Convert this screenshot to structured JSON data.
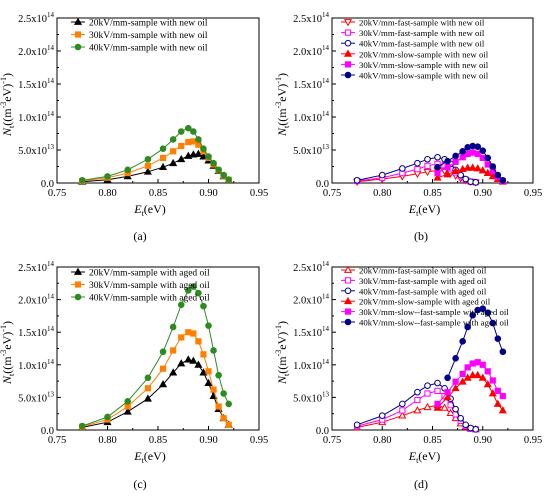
{
  "chart_data": [
    {
      "type": "line",
      "panel_label": "(a)",
      "xlabel": "E",
      "xlabel_sub": "t",
      "xlabel_unit": "(eV)",
      "ylabel_main": "N",
      "ylabel_sub": "t",
      "ylabel_rest": "((m",
      "ylabel_sup1": "-3",
      "ylabel_mid": "eV)",
      "ylabel_sup2": "-1",
      "ylabel_end": ")",
      "xlim": [
        0.75,
        0.95
      ],
      "ylim": [
        0,
        250000000000000.0
      ],
      "x_ticks": [
        "0.75",
        "0.80",
        "0.85",
        "0.90",
        "0.95"
      ],
      "y_ticks": [
        "0.0",
        "5.0x10",
        "1.0x10",
        "1.5x10",
        "2.0x10",
        "2.5x10"
      ],
      "y_tick_exps": [
        "",
        "13",
        "14",
        "14",
        "14",
        "14"
      ],
      "series": [
        {
          "name": "20kV/mm-sample with new oil",
          "color": "#000000",
          "marker": "triangle",
          "fill": true,
          "x": [
            0.775,
            0.8,
            0.82,
            0.84,
            0.855,
            0.865,
            0.873,
            0.88,
            0.885,
            0.89,
            0.895,
            0.9,
            0.905,
            0.91,
            0.915,
            0.92
          ],
          "y": [
            2000000000000.0,
            5000000000000.0,
            10000000000000.0,
            17000000000000.0,
            24000000000000.0,
            30000000000000.0,
            36000000000000.0,
            41000000000000.0,
            43000000000000.0,
            44000000000000.0,
            40000000000000.0,
            34000000000000.0,
            26000000000000.0,
            18000000000000.0,
            10000000000000.0,
            4000000000000.0
          ]
        },
        {
          "name": "30kV/mm-sample with new oil",
          "color": "#FF7F00",
          "marker": "square",
          "fill": true,
          "x": [
            0.775,
            0.8,
            0.82,
            0.84,
            0.855,
            0.865,
            0.873,
            0.88,
            0.885,
            0.89,
            0.895,
            0.9,
            0.905,
            0.91,
            0.915,
            0.92
          ],
          "y": [
            3000000000000.0,
            8000000000000.0,
            15000000000000.0,
            26000000000000.0,
            38000000000000.0,
            48000000000000.0,
            56000000000000.0,
            62000000000000.0,
            63000000000000.0,
            58000000000000.0,
            48000000000000.0,
            38000000000000.0,
            28000000000000.0,
            19000000000000.0,
            11000000000000.0,
            5000000000000.0
          ]
        },
        {
          "name": "40kV/mm-sample with new oil",
          "color": "#2E8B22",
          "marker": "circle",
          "fill": true,
          "x": [
            0.775,
            0.8,
            0.82,
            0.84,
            0.855,
            0.865,
            0.873,
            0.88,
            0.885,
            0.89,
            0.895,
            0.9,
            0.905,
            0.91,
            0.915,
            0.92
          ],
          "y": [
            4000000000000.0,
            10000000000000.0,
            20000000000000.0,
            36000000000000.0,
            52000000000000.0,
            66000000000000.0,
            78000000000000.0,
            83000000000000.0,
            78000000000000.0,
            66000000000000.0,
            52000000000000.0,
            40000000000000.0,
            30000000000000.0,
            20000000000000.0,
            12000000000000.0,
            5000000000000.0
          ]
        }
      ]
    },
    {
      "type": "line",
      "panel_label": "(b)",
      "xlabel": "E",
      "xlabel_sub": "t",
      "xlabel_unit": "(eV)",
      "ylabel_main": "N",
      "ylabel_sub": "t",
      "ylabel_rest": "((m",
      "ylabel_sup1": "-3",
      "ylabel_mid": "eV)",
      "ylabel_sup2": "-1",
      "ylabel_end": ")",
      "xlim": [
        0.75,
        0.95
      ],
      "ylim": [
        0,
        250000000000000.0
      ],
      "x_ticks": [
        "0.75",
        "0.80",
        "0.85",
        "0.90",
        "0.95"
      ],
      "y_ticks": [
        "0.0",
        "5.0x10",
        "1.0x10",
        "1.5x10",
        "2.0x10",
        "2.5x10"
      ],
      "y_tick_exps": [
        "",
        "13",
        "14",
        "14",
        "14",
        "14"
      ],
      "series": [
        {
          "name": "20kV/mm-fast-sample with new oil",
          "color": "#FF0000",
          "marker": "triangle-down",
          "fill": false,
          "x": [
            0.775,
            0.8,
            0.82,
            0.835,
            0.845,
            0.855,
            0.862,
            0.868,
            0.873,
            0.878,
            0.883,
            0.888,
            0.893
          ],
          "y": [
            2000000000000.0,
            6000000000000.0,
            10000000000000.0,
            14000000000000.0,
            17000000000000.0,
            19000000000000.0,
            18000000000000.0,
            15000000000000.0,
            11000000000000.0,
            7000000000000.0,
            4000000000000.0,
            2000000000000.0,
            1000000000000.0
          ]
        },
        {
          "name": "30kV/mm-fast-sample with new oil",
          "color": "#FF00FF",
          "marker": "square",
          "fill": false,
          "x": [
            0.775,
            0.8,
            0.82,
            0.835,
            0.845,
            0.855,
            0.862,
            0.868,
            0.873,
            0.878,
            0.883,
            0.888,
            0.893
          ],
          "y": [
            3000000000000.0,
            8000000000000.0,
            15000000000000.0,
            21000000000000.0,
            26000000000000.0,
            29000000000000.0,
            27000000000000.0,
            22000000000000.0,
            16000000000000.0,
            10000000000000.0,
            5000000000000.0,
            2000000000000.0,
            1000000000000.0
          ]
        },
        {
          "name": "40kV/mm-fast-sample with new oil",
          "color": "#00008B",
          "marker": "circle",
          "fill": false,
          "x": [
            0.775,
            0.8,
            0.82,
            0.835,
            0.845,
            0.855,
            0.862,
            0.868,
            0.873,
            0.878,
            0.883,
            0.888,
            0.893
          ],
          "y": [
            4000000000000.0,
            12000000000000.0,
            22000000000000.0,
            30000000000000.0,
            36000000000000.0,
            39000000000000.0,
            36000000000000.0,
            29000000000000.0,
            20000000000000.0,
            12000000000000.0,
            6000000000000.0,
            2000000000000.0,
            1000000000000.0
          ]
        },
        {
          "name": "20kV/mm-slow-sample with new oil",
          "color": "#FF0000",
          "marker": "triangle",
          "fill": true,
          "x": [
            0.855,
            0.865,
            0.873,
            0.88,
            0.885,
            0.89,
            0.895,
            0.9,
            0.905,
            0.91,
            0.915,
            0.92
          ],
          "y": [
            8000000000000.0,
            13000000000000.0,
            18000000000000.0,
            21000000000000.0,
            23000000000000.0,
            23000000000000.0,
            22000000000000.0,
            19000000000000.0,
            15000000000000.0,
            10000000000000.0,
            6000000000000.0,
            2000000000000.0
          ]
        },
        {
          "name": "30kV/mm-slow-sample with new oil",
          "color": "#FF00FF",
          "marker": "square",
          "fill": true,
          "x": [
            0.855,
            0.865,
            0.873,
            0.88,
            0.885,
            0.89,
            0.895,
            0.9,
            0.905,
            0.91,
            0.915,
            0.92
          ],
          "y": [
            15000000000000.0,
            24000000000000.0,
            32000000000000.0,
            39000000000000.0,
            44000000000000.0,
            46000000000000.0,
            44000000000000.0,
            38000000000000.0,
            28000000000000.0,
            18000000000000.0,
            9000000000000.0,
            3000000000000.0
          ]
        },
        {
          "name": "40kV/mm-slow-sample with new oil",
          "color": "#00008B",
          "marker": "circle",
          "fill": true,
          "x": [
            0.855,
            0.865,
            0.873,
            0.88,
            0.885,
            0.89,
            0.895,
            0.9,
            0.905,
            0.91,
            0.915,
            0.92
          ],
          "y": [
            24000000000000.0,
            33000000000000.0,
            41000000000000.0,
            48000000000000.0,
            54000000000000.0,
            56000000000000.0,
            55000000000000.0,
            49000000000000.0,
            38000000000000.0,
            25000000000000.0,
            12000000000000.0,
            4000000000000.0
          ]
        }
      ]
    },
    {
      "type": "line",
      "panel_label": "(c)",
      "xlabel": "E",
      "xlabel_sub": "t",
      "xlabel_unit": "(eV)",
      "ylabel_main": "N",
      "ylabel_sub": "t",
      "ylabel_rest": "((m",
      "ylabel_sup1": "-3",
      "ylabel_mid": "eV)",
      "ylabel_sup2": "-1",
      "ylabel_end": ")",
      "xlim": [
        0.75,
        0.95
      ],
      "ylim": [
        0,
        250000000000000.0
      ],
      "x_ticks": [
        "0.75",
        "0.80",
        "0.85",
        "0.90",
        "0.95"
      ],
      "y_ticks": [
        "0.0",
        "5.0x10",
        "1.0x10",
        "1.5x10",
        "2.0x10",
        "2.5x10"
      ],
      "y_tick_exps": [
        "",
        "13",
        "14",
        "14",
        "14",
        "14"
      ],
      "series": [
        {
          "name": "20kV/mm-sample with aged oil",
          "color": "#000000",
          "marker": "triangle",
          "fill": true,
          "x": [
            0.775,
            0.8,
            0.82,
            0.84,
            0.855,
            0.865,
            0.873,
            0.88,
            0.885,
            0.89,
            0.895,
            0.9,
            0.905,
            0.91,
            0.915,
            0.92
          ],
          "y": [
            4000000000000.0,
            12000000000000.0,
            28000000000000.0,
            48000000000000.0,
            70000000000000.0,
            88000000000000.0,
            102000000000000.0,
            108000000000000.0,
            106000000000000.0,
            100000000000000.0,
            88000000000000.0,
            72000000000000.0,
            52000000000000.0,
            32000000000000.0,
            18000000000000.0,
            8000000000000.0
          ]
        },
        {
          "name": "30kV/mm-sample with aged oil",
          "color": "#FF7F00",
          "marker": "square",
          "fill": true,
          "x": [
            0.775,
            0.8,
            0.82,
            0.84,
            0.855,
            0.865,
            0.873,
            0.88,
            0.885,
            0.89,
            0.895,
            0.9,
            0.905,
            0.91,
            0.915,
            0.92
          ],
          "y": [
            5000000000000.0,
            16000000000000.0,
            36000000000000.0,
            64000000000000.0,
            94000000000000.0,
            122000000000000.0,
            142000000000000.0,
            150000000000000.0,
            148000000000000.0,
            136000000000000.0,
            116000000000000.0,
            90000000000000.0,
            62000000000000.0,
            36000000000000.0,
            18000000000000.0,
            8000000000000.0
          ]
        },
        {
          "name": "40kV/mm-sample with aged oil",
          "color": "#2E8B22",
          "marker": "circle",
          "fill": true,
          "x": [
            0.775,
            0.8,
            0.82,
            0.84,
            0.855,
            0.865,
            0.873,
            0.88,
            0.885,
            0.89,
            0.895,
            0.9,
            0.905,
            0.91,
            0.915,
            0.92
          ],
          "y": [
            6000000000000.0,
            20000000000000.0,
            44000000000000.0,
            80000000000000.0,
            120000000000000.0,
            158000000000000.0,
            192000000000000.0,
            214000000000000.0,
            220000000000000.0,
            210000000000000.0,
            190000000000000.0,
            160000000000000.0,
            122000000000000.0,
            84000000000000.0,
            56000000000000.0,
            40000000000000.0
          ]
        }
      ]
    },
    {
      "type": "line",
      "panel_label": "(d)",
      "xlabel": "E",
      "xlabel_sub": "t",
      "xlabel_unit": "(eV)",
      "ylabel_main": "N",
      "ylabel_sub": "t",
      "ylabel_rest": "((m",
      "ylabel_sup1": "-3",
      "ylabel_mid": "eV)",
      "ylabel_sup2": "-1",
      "ylabel_end": ")",
      "xlim": [
        0.75,
        0.95
      ],
      "ylim": [
        0,
        250000000000000.0
      ],
      "x_ticks": [
        "0.75",
        "0.80",
        "0.85",
        "0.90",
        "0.95"
      ],
      "y_ticks": [
        "0.0",
        "5.0x10",
        "1.0x10",
        "1.5x10",
        "2.0x10",
        "2.5x10"
      ],
      "y_tick_exps": [
        "",
        "13",
        "14",
        "14",
        "14",
        "14"
      ],
      "series": [
        {
          "name": "20kV/mm-fast-sample with aged oil",
          "color": "#FF0000",
          "marker": "triangle",
          "fill": false,
          "x": [
            0.775,
            0.8,
            0.82,
            0.835,
            0.845,
            0.855,
            0.862,
            0.868,
            0.873,
            0.878,
            0.883,
            0.888,
            0.893
          ],
          "y": [
            4000000000000.0,
            12000000000000.0,
            22000000000000.0,
            30000000000000.0,
            35000000000000.0,
            38000000000000.0,
            34000000000000.0,
            26000000000000.0,
            18000000000000.0,
            10000000000000.0,
            5000000000000.0,
            2000000000000.0,
            1000000000000.0
          ]
        },
        {
          "name": "30kV/mm-fast-sample with aged oil",
          "color": "#FF00FF",
          "marker": "square",
          "fill": false,
          "x": [
            0.775,
            0.8,
            0.82,
            0.835,
            0.845,
            0.855,
            0.862,
            0.868,
            0.873,
            0.878,
            0.883,
            0.888,
            0.893
          ],
          "y": [
            6000000000000.0,
            16000000000000.0,
            30000000000000.0,
            46000000000000.0,
            56000000000000.0,
            60000000000000.0,
            52000000000000.0,
            38000000000000.0,
            24000000000000.0,
            14000000000000.0,
            6000000000000.0,
            2000000000000.0,
            1000000000000.0
          ]
        },
        {
          "name": "40kV/mm-fast-sample with aged oil",
          "color": "#00008B",
          "marker": "circle",
          "fill": false,
          "x": [
            0.775,
            0.8,
            0.82,
            0.835,
            0.845,
            0.855,
            0.862,
            0.868,
            0.873,
            0.878,
            0.883,
            0.888,
            0.893
          ],
          "y": [
            8000000000000.0,
            22000000000000.0,
            40000000000000.0,
            58000000000000.0,
            68000000000000.0,
            72000000000000.0,
            64000000000000.0,
            48000000000000.0,
            32000000000000.0,
            18000000000000.0,
            8000000000000.0,
            3000000000000.0,
            1000000000000.0
          ]
        },
        {
          "name": "20kV/mm-slow-sample with aged oil",
          "color": "#FF0000",
          "marker": "triangle",
          "fill": true,
          "x": [
            0.855,
            0.865,
            0.873,
            0.88,
            0.885,
            0.89,
            0.895,
            0.9,
            0.905,
            0.91,
            0.915,
            0.92
          ],
          "y": [
            34000000000000.0,
            50000000000000.0,
            64000000000000.0,
            74000000000000.0,
            80000000000000.0,
            84000000000000.0,
            84000000000000.0,
            80000000000000.0,
            70000000000000.0,
            56000000000000.0,
            40000000000000.0,
            30000000000000.0
          ]
        },
        {
          "name": "30kV/mm-slow--fast-sample with aged oil",
          "color": "#FF00FF",
          "marker": "square",
          "fill": true,
          "x": [
            0.855,
            0.865,
            0.873,
            0.88,
            0.885,
            0.89,
            0.895,
            0.9,
            0.905,
            0.91,
            0.915,
            0.92
          ],
          "y": [
            40000000000000.0,
            58000000000000.0,
            74000000000000.0,
            86000000000000.0,
            96000000000000.0,
            102000000000000.0,
            104000000000000.0,
            100000000000000.0,
            90000000000000.0,
            76000000000000.0,
            60000000000000.0,
            52000000000000.0
          ]
        },
        {
          "name": "40kV/mm-slow--fast-sample with aged oil",
          "color": "#00008B",
          "marker": "circle",
          "fill": true,
          "x": [
            0.865,
            0.873,
            0.88,
            0.885,
            0.89,
            0.895,
            0.9,
            0.905,
            0.91,
            0.915,
            0.92
          ],
          "y": [
            80000000000000.0,
            110000000000000.0,
            136000000000000.0,
            158000000000000.0,
            176000000000000.0,
            184000000000000.0,
            186000000000000.0,
            180000000000000.0,
            164000000000000.0,
            140000000000000.0,
            120000000000000.0
          ]
        }
      ]
    }
  ]
}
